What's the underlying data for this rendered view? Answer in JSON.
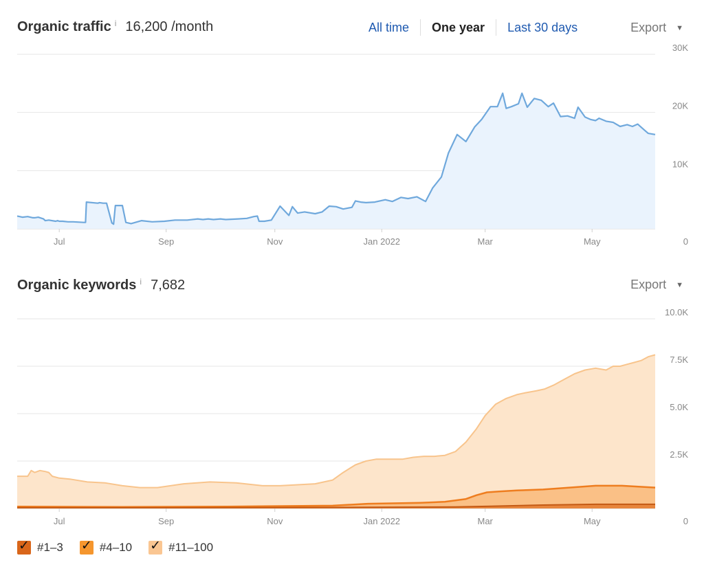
{
  "traffic": {
    "title": "Organic traffic",
    "info_mark": "i",
    "value": "16,200 /month",
    "tabs": [
      {
        "label": "All time",
        "active": false
      },
      {
        "label": "One year",
        "active": true
      },
      {
        "label": "Last 30 days",
        "active": false
      }
    ],
    "export_label": "Export"
  },
  "keywords": {
    "title": "Organic keywords",
    "info_mark": "i",
    "value": "7,682",
    "export_label": "Export"
  },
  "legend": [
    {
      "label": "#1–3",
      "color": "#d9661a",
      "checked": true
    },
    {
      "label": "#4–10",
      "color": "#f5962e",
      "checked": true
    },
    {
      "label": "#11–100",
      "color": "#fac692",
      "checked": true
    }
  ],
  "chart_data": [
    {
      "type": "area",
      "x_tick_labels": [
        "Jul",
        "Sep",
        "Nov",
        "Jan 2022",
        "Mar",
        "May"
      ],
      "y_tick_labels": [
        "0",
        "10K",
        "20K",
        "30K"
      ],
      "ylim": [
        0,
        30000
      ],
      "color": "#6fa8dc",
      "fill": "#eaf3fd",
      "series": [
        {
          "x": [
            0,
            3,
            6,
            9,
            10,
            12,
            15,
            16,
            18,
            22,
            23,
            24,
            26,
            29,
            32,
            38,
            39,
            39.5,
            46,
            47,
            49,
            51,
            54,
            55,
            56,
            60,
            62,
            65,
            71,
            77,
            84,
            90,
            97,
            103,
            106,
            109,
            112,
            116,
            119,
            126,
            131,
            135,
            137,
            138,
            141,
            145,
            150,
            155,
            157,
            160,
            164,
            170,
            174,
            178,
            182,
            186,
            191,
            193,
            196,
            199,
            204,
            210,
            214,
            219,
            223,
            228,
            233,
            237,
            242,
            246,
            251,
            256,
            261,
            265,
            270,
            274,
            277,
            279,
            282,
            286,
            288,
            291,
            295,
            299,
            303,
            306,
            310,
            314,
            318,
            320,
            324,
            327,
            330,
            332,
            336,
            340,
            344,
            348,
            351,
            354,
            357,
            360,
            364
          ],
          "y": [
            2200,
            2000,
            2100,
            1900,
            1900,
            2000,
            1700,
            1400,
            1500,
            1300,
            1400,
            1300,
            1300,
            1200,
            1200,
            1100,
            1100,
            4600,
            4400,
            4500,
            4400,
            4400,
            1000,
            800,
            4000,
            4000,
            1100,
            900,
            1400,
            1200,
            1300,
            1500,
            1500,
            1700,
            1600,
            1700,
            1600,
            1700,
            1600,
            1700,
            1800,
            2100,
            2200,
            1300,
            1300,
            1500,
            3900,
            2300,
            3800,
            2700,
            2900,
            2600,
            2900,
            3900,
            3800,
            3400,
            3700,
            4800,
            4600,
            4500,
            4600,
            5000,
            4700,
            5400,
            5200,
            5500,
            4700,
            7000,
            8900,
            13000,
            16200,
            15000,
            17500,
            18800,
            21000,
            21000,
            23300,
            20700,
            21000,
            21500,
            23300,
            20900,
            22400,
            22100,
            21000,
            21600,
            19300,
            19400,
            19000,
            20900,
            19200,
            18800,
            18600,
            19000,
            18500,
            18300,
            17600,
            17900,
            17600,
            18000,
            17200,
            16400,
            16200
          ]
        }
      ]
    },
    {
      "type": "area",
      "x_tick_labels": [
        "Jul",
        "Sep",
        "Nov",
        "Jan 2022",
        "Mar",
        "May"
      ],
      "y_tick_labels": [
        "0",
        "2.5K",
        "5.0K",
        "7.5K",
        "10.0K"
      ],
      "ylim": [
        0,
        10000
      ],
      "series": [
        {
          "label": "#11–100",
          "x": [
            0,
            6,
            8,
            10,
            13,
            16,
            18,
            20,
            24,
            30,
            40,
            50,
            60,
            70,
            80,
            95,
            110,
            125,
            140,
            150,
            160,
            170,
            180,
            186,
            193,
            199,
            205,
            212,
            220,
            226,
            232,
            238,
            244,
            250,
            256,
            262,
            267,
            273,
            279,
            285,
            290,
            296,
            301,
            306,
            312,
            318,
            324,
            330,
            336,
            340,
            344,
            348,
            352,
            356,
            360,
            364
          ],
          "y": [
            1700,
            1700,
            2000,
            1900,
            2000,
            1950,
            1900,
            1700,
            1600,
            1550,
            1400,
            1350,
            1200,
            1100,
            1100,
            1300,
            1400,
            1350,
            1200,
            1200,
            1250,
            1300,
            1500,
            1900,
            2300,
            2500,
            2600,
            2600,
            2600,
            2700,
            2750,
            2750,
            2800,
            3000,
            3500,
            4200,
            4900,
            5500,
            5800,
            6000,
            6100,
            6200,
            6300,
            6500,
            6800,
            7100,
            7300,
            7400,
            7300,
            7500,
            7500,
            7600,
            7700,
            7800,
            8000,
            8100
          ]
        },
        {
          "label": "#4–10",
          "x": [
            0,
            60,
            120,
            180,
            200,
            230,
            244,
            256,
            262,
            268,
            275,
            285,
            300,
            315,
            330,
            345,
            364
          ],
          "y": [
            100,
            80,
            100,
            150,
            250,
            300,
            350,
            500,
            700,
            850,
            900,
            950,
            1000,
            1100,
            1200,
            1200,
            1100
          ]
        },
        {
          "label": "#1–3",
          "x": [
            0,
            100,
            200,
            250,
            270,
            300,
            330,
            364
          ],
          "y": [
            40,
            40,
            60,
            80,
            120,
            180,
            220,
            220
          ]
        }
      ]
    }
  ]
}
